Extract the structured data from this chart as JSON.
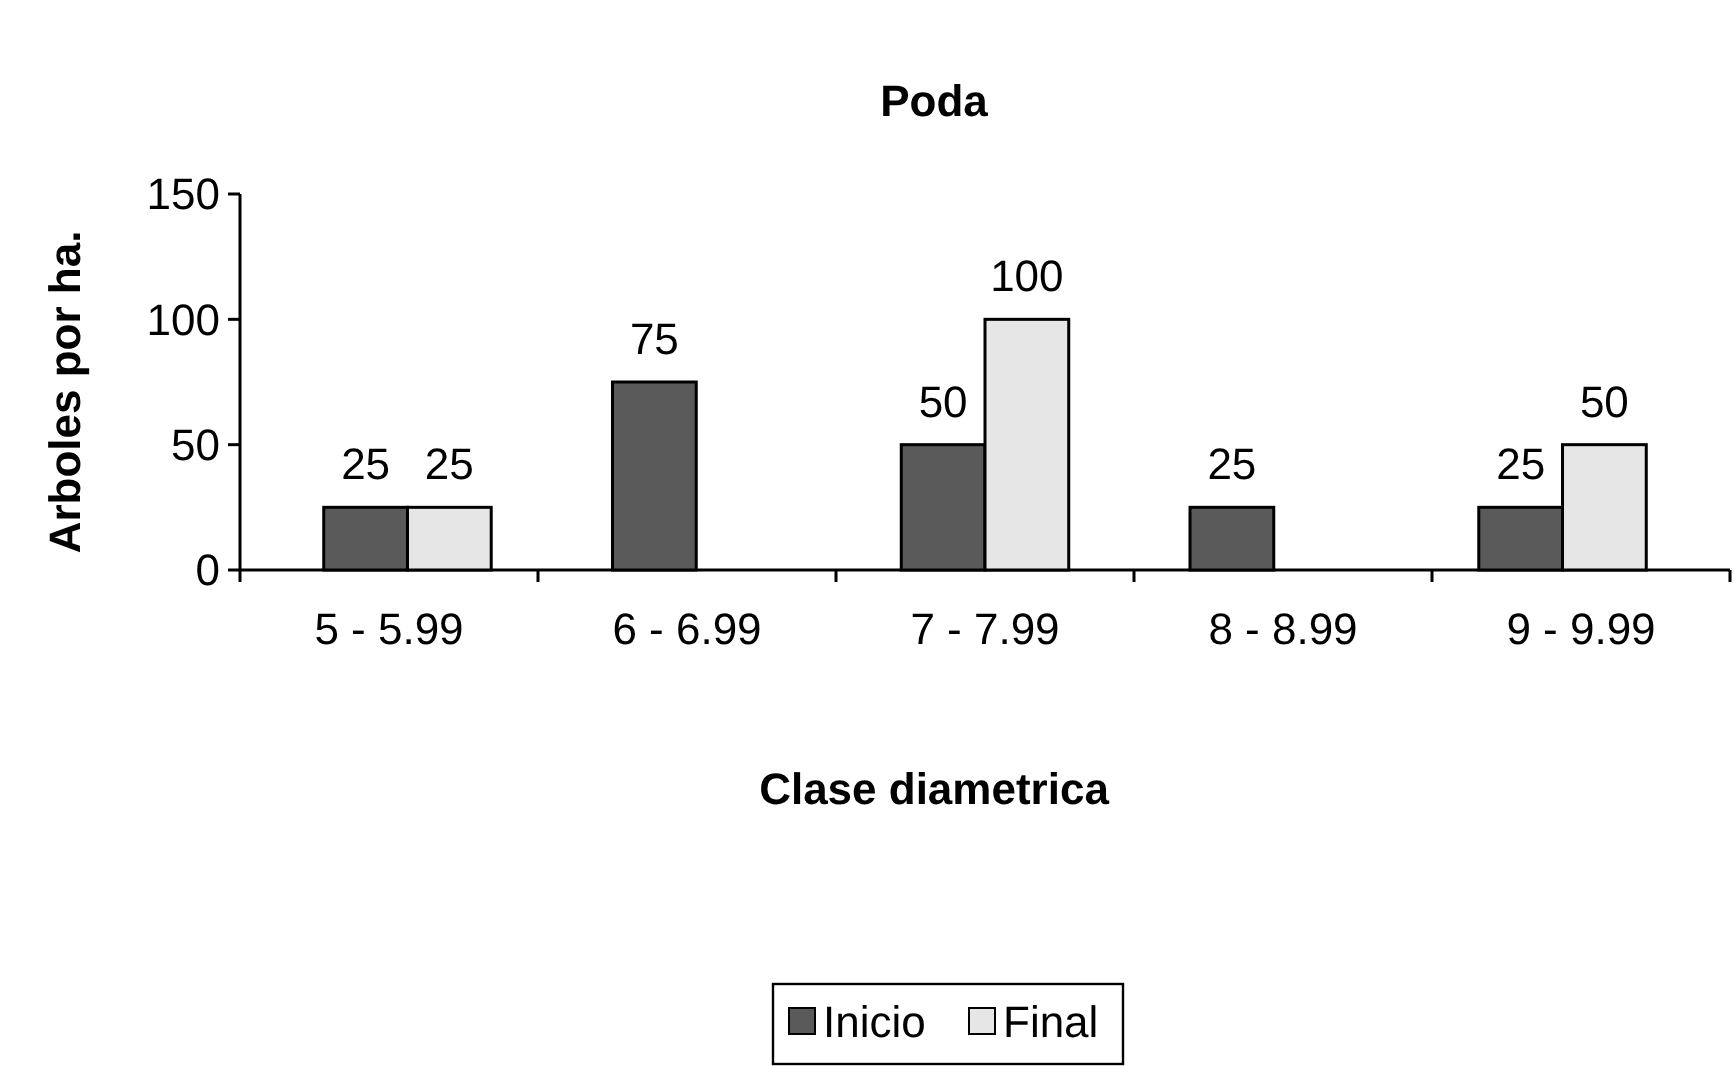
{
  "chart_data": {
    "type": "bar",
    "title": "Poda",
    "xlabel": "Clase diametrica",
    "ylabel": "Arboles por ha.",
    "categories": [
      "5 - 5.99",
      "6 - 6.99",
      "7 - 7.99",
      "8 - 8.99",
      "9 - 9.99"
    ],
    "series": [
      {
        "name": "Inicio",
        "color": "#5a5a5a",
        "values": [
          25,
          75,
          50,
          25,
          25
        ]
      },
      {
        "name": "Final",
        "color": "#e6e6e6",
        "values": [
          25,
          null,
          100,
          null,
          50
        ]
      }
    ],
    "ylim": [
      0,
      150
    ],
    "yticks": [
      0,
      50,
      100,
      150
    ],
    "grid": false,
    "legend": "bottom",
    "data_labels": true
  }
}
